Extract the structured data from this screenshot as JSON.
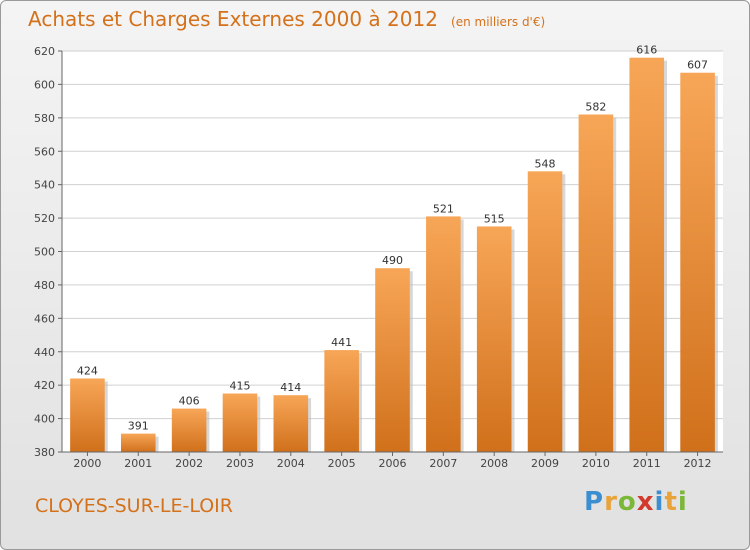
{
  "title": "Achats et Charges Externes 2000 à 2012",
  "unit": "(en milliers d'€)",
  "city": "CLOYES-SUR-LE-LOIR",
  "logo": {
    "letters": [
      "P",
      "r",
      "o",
      "x",
      "i",
      "t",
      "i"
    ],
    "colors": [
      "#3b8fd0",
      "#e8a33a",
      "#7bb83a",
      "#d33a2c",
      "#3b8fd0",
      "#e8a33a",
      "#7bb83a"
    ]
  },
  "colors": {
    "bar_top": "#f7a657",
    "bar_bottom": "#d0701b",
    "accent": "#d4711b"
  },
  "chart_data": {
    "type": "bar",
    "categories": [
      "2000",
      "2001",
      "2002",
      "2003",
      "2004",
      "2005",
      "2006",
      "2007",
      "2008",
      "2009",
      "2010",
      "2011",
      "2012"
    ],
    "values": [
      424,
      391,
      406,
      415,
      414,
      441,
      490,
      521,
      515,
      548,
      582,
      616,
      607
    ],
    "yticks": [
      380,
      400,
      420,
      440,
      460,
      480,
      500,
      520,
      540,
      560,
      580,
      600,
      620
    ],
    "ylim": [
      380,
      620
    ],
    "grid": true
  }
}
